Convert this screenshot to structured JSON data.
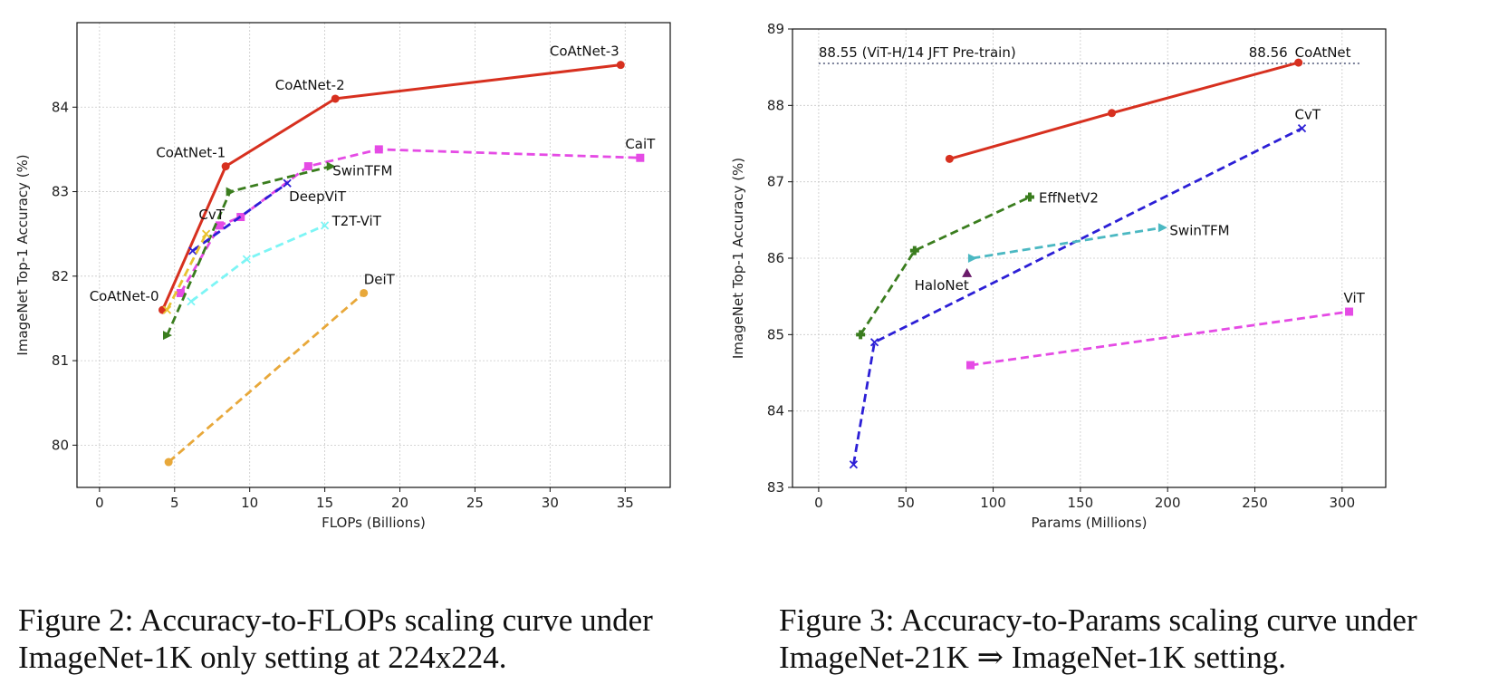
{
  "captions": {
    "left": "Figure 2: Accuracy-to-FLOPs scaling curve under ImageNet-1K only setting at 224x224.",
    "right": "Figure 3: Accuracy-to-Params scaling curve under ImageNet-21K ⇒ ImageNet-1K setting."
  },
  "chart_data": [
    {
      "type": "line",
      "title": "",
      "xlabel": "FLOPs (Billions)",
      "ylabel": "ImageNet Top-1 Accuracy (%)",
      "xlim": [
        -1.5,
        38
      ],
      "ylim": [
        79.5,
        85
      ],
      "xticks": [
        0,
        5,
        10,
        15,
        20,
        25,
        30,
        35
      ],
      "yticks": [
        80,
        81,
        82,
        83,
        84
      ],
      "grid": true,
      "series": [
        {
          "name": "CoAtNet",
          "color": "#d7301f",
          "dash": false,
          "marker": "o",
          "x": [
            4.2,
            8.4,
            15.7,
            34.7
          ],
          "y": [
            81.6,
            83.3,
            84.1,
            84.5
          ],
          "point_labels": [
            "CoAtNet-0",
            "CoAtNet-1",
            "CoAtNet-2",
            "CoAtNet-3"
          ]
        },
        {
          "name": "CaiT",
          "color": "#e54be5",
          "dash": true,
          "marker": "s",
          "x": [
            5.4,
            8.0,
            9.4,
            13.9,
            18.6,
            36.0
          ],
          "y": [
            81.8,
            82.6,
            82.7,
            83.3,
            83.5,
            83.4
          ]
        },
        {
          "name": "SwinTFM",
          "color": "#3a7d1e",
          "dash": true,
          "marker": ">",
          "x": [
            4.5,
            8.7,
            15.4
          ],
          "y": [
            81.3,
            83.0,
            83.3
          ]
        },
        {
          "name": "DeepViT",
          "color": "#2c1fd6",
          "dash": true,
          "marker": "x",
          "x": [
            6.2,
            12.5
          ],
          "y": [
            82.3,
            83.1
          ]
        },
        {
          "name": "CvT",
          "color": "#e9c230",
          "dash": true,
          "marker": "x",
          "x": [
            4.5,
            7.1
          ],
          "y": [
            81.6,
            82.5
          ]
        },
        {
          "name": "T2T-ViT",
          "color": "#7df5f5",
          "dash": true,
          "marker": "x",
          "x": [
            6.1,
            9.8,
            15.0
          ],
          "y": [
            81.7,
            82.2,
            82.6
          ]
        },
        {
          "name": "DeiT",
          "color": "#e8a83a",
          "dash": true,
          "marker": "o",
          "x": [
            4.6,
            17.6
          ],
          "y": [
            79.8,
            81.8
          ]
        }
      ],
      "labels": {
        "CoAtNet-0": "CoAtNet-0",
        "CoAtNet-1": "CoAtNet-1",
        "CoAtNet-2": "CoAtNet-2",
        "CoAtNet-3": "CoAtNet-3",
        "CaiT": "CaiT",
        "SwinTFM": "SwinTFM",
        "DeepViT": "DeepViT",
        "CvT": "CvT",
        "T2T-ViT": "T2T-ViT",
        "DeiT": "DeiT"
      }
    },
    {
      "type": "line",
      "title": "",
      "xlabel": "Params (Millions)",
      "ylabel": "ImageNet Top-1 Accuracy (%)",
      "xlim": [
        -15,
        325
      ],
      "ylim": [
        83,
        89
      ],
      "xticks": [
        0,
        50,
        100,
        150,
        200,
        250,
        300
      ],
      "yticks": [
        83,
        84,
        85,
        86,
        87,
        88,
        89
      ],
      "grid": true,
      "reference_line": {
        "y": 88.55,
        "x_range": [
          0,
          310
        ],
        "label": "88.55 (ViT-H/14 JFT Pre-train)",
        "color": "#7a8099"
      },
      "series": [
        {
          "name": "CoAtNet",
          "color": "#d7301f",
          "dash": false,
          "marker": "o",
          "x": [
            75,
            168,
            275
          ],
          "y": [
            87.3,
            87.9,
            88.56
          ]
        },
        {
          "name": "CvT",
          "color": "#2c1fd6",
          "dash": true,
          "marker": "x",
          "x": [
            20,
            32,
            277
          ],
          "y": [
            83.3,
            84.9,
            87.7
          ]
        },
        {
          "name": "EffNetV2",
          "color": "#3a7d1e",
          "dash": true,
          "marker": "P",
          "x": [
            24,
            55,
            121
          ],
          "y": [
            85.0,
            86.1,
            86.8
          ]
        },
        {
          "name": "SwinTFM",
          "color": "#4bb8c2",
          "dash": true,
          "marker": ">",
          "x": [
            88,
            197
          ],
          "y": [
            86.0,
            86.4
          ]
        },
        {
          "name": "HaloNet",
          "color": "#6a1b6a",
          "dash": false,
          "marker": "^",
          "x": [
            85
          ],
          "y": [
            85.8
          ]
        },
        {
          "name": "ViT",
          "color": "#e54be5",
          "dash": true,
          "marker": "s",
          "x": [
            87,
            304
          ],
          "y": [
            84.6,
            85.3
          ]
        }
      ],
      "labels": {
        "best_value": "88.56",
        "CoAtNet": "CoAtNet",
        "CvT": "CvT",
        "EffNetV2": "EffNetV2",
        "SwinTFM": "SwinTFM",
        "HaloNet": "HaloNet",
        "ViT": "ViT"
      }
    }
  ]
}
